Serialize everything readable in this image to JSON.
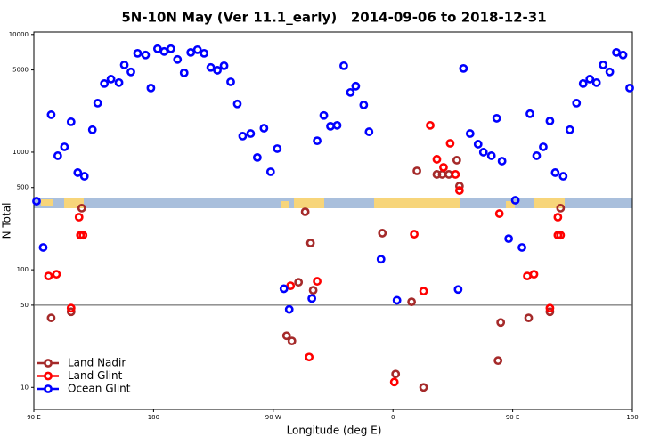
{
  "chart_data": {
    "type": "scatter",
    "title": "5N-10N May (Ver 11.1_early)   2014-09-06 to 2018-12-31",
    "x_label": "Longitude (deg E)",
    "y_label": "N Total",
    "log_y": true,
    "xlim": [
      90,
      540
    ],
    "ylim": [
      6.5,
      10500
    ],
    "xticks": [
      {
        "value": 90,
        "label": "90 E"
      },
      180,
      {
        "value": 270,
        "label": "90 W"
      },
      {
        "value": 360,
        "label": "0"
      },
      {
        "value": 450,
        "label": "90 E"
      },
      {
        "value": 540,
        "label": "180"
      }
    ],
    "yticks": [
      10,
      50,
      100,
      500,
      1000,
      5000,
      10000
    ],
    "reference_line": 50,
    "legend": "lower left",
    "series": [
      {
        "name": "Land Nadir",
        "color": "#a52a2a",
        "x": [
          103,
          118,
          126,
          280,
          284,
          289,
          294,
          298,
          300,
          352,
          362,
          374,
          383,
          378,
          393,
          397,
          402,
          408,
          410,
          439,
          441,
          462,
          478,
          486
        ],
        "values": [
          39,
          44,
          334,
          27.5,
          24.8,
          78.3,
          311,
          169,
          67,
          205,
          13,
          53.4,
          10,
          693,
          647,
          647,
          647,
          855,
          515,
          16.9,
          35.7,
          39,
          44,
          334
        ]
      },
      {
        "name": "Land Glint",
        "color": "#ff0000",
        "x": [
          101,
          107,
          118,
          124,
          125,
          127,
          283,
          297,
          303,
          361,
          376,
          383,
          388,
          393,
          398,
          403,
          407,
          410,
          440,
          461,
          466,
          478,
          484,
          484,
          486
        ],
        "values": [
          88.5,
          91.6,
          47.2,
          280,
          197,
          197,
          73.1,
          18.1,
          79.8,
          11.1,
          201,
          65.8,
          1690,
          870,
          743,
          1190,
          647,
          472,
          300,
          88.5,
          91.6,
          47.2,
          280,
          197,
          197
        ]
      },
      {
        "name": "Ocean Glint",
        "color": "#0000ff",
        "x": [
          92,
          97,
          103,
          108,
          113,
          118,
          123,
          128,
          134,
          138,
          143,
          148,
          154,
          158,
          163,
          168,
          174,
          178,
          183,
          188,
          193,
          198,
          203,
          208,
          213,
          218,
          223,
          228,
          233,
          238,
          243,
          247,
          253,
          258,
          263,
          268,
          273,
          278,
          282,
          299,
          303,
          308,
          313,
          318,
          323,
          328,
          332,
          338,
          342,
          351,
          363,
          409,
          413,
          418,
          424,
          428,
          434,
          438,
          442,
          447,
          452,
          457,
          463,
          468,
          473,
          478,
          482,
          488,
          493,
          498,
          503,
          508,
          513,
          518,
          523,
          528,
          533,
          538
        ],
        "values": [
          383,
          155,
          2080,
          933,
          1110,
          1810,
          670,
          624,
          1550,
          2610,
          3830,
          4180,
          3900,
          5520,
          4810,
          6930,
          6700,
          3510,
          7570,
          7180,
          7570,
          6140,
          4720,
          7050,
          7430,
          6930,
          5250,
          4970,
          5430,
          3960,
          2570,
          1370,
          1440,
          902,
          1600,
          681,
          1072,
          69,
          46,
          57,
          1250,
          2050,
          1660,
          1690,
          5430,
          3220,
          3640,
          2520,
          1490,
          123,
          55,
          68,
          5150,
          1440,
          1170,
          1000,
          933,
          1940,
          840,
          184,
          390,
          155,
          2120,
          933,
          1110,
          1840,
          670,
          624,
          1550,
          2610,
          3830,
          4180,
          3900,
          5520,
          4810,
          7050,
          6700,
          3510
        ]
      }
    ]
  }
}
